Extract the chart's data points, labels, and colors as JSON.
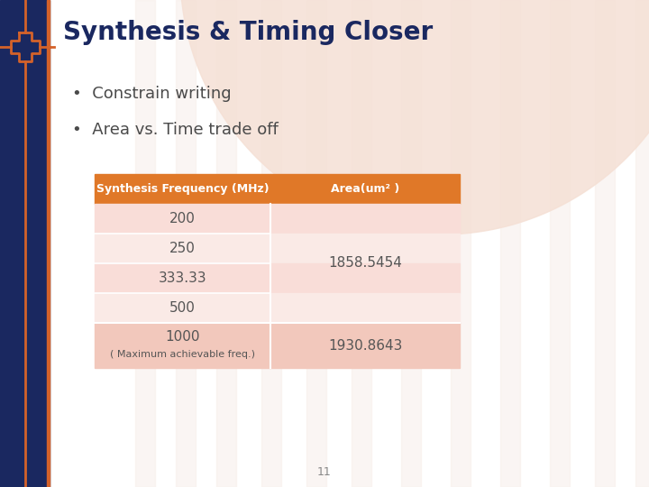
{
  "title": "Synthesis & Timing Closer",
  "bullets": [
    "Constrain writing",
    "Area vs. Time trade off"
  ],
  "table_header1": "Synthesis Frequency (MHz)",
  "table_header2": "Area(um",
  "table_header2_sup": "2",
  "table_header2_end": " )",
  "rows_left": [
    "200",
    "250",
    "333.33",
    "500"
  ],
  "row_last_line1": "1000",
  "row_last_line2": "( Maximum achievable freq.)",
  "area_merged": "1858.5454",
  "area_last": "1930.8643",
  "bg_color": "#ffffff",
  "sidebar_color": "#1a2860",
  "sidebar_accent": "#d4622a",
  "title_color": "#1a2860",
  "bullet_color": "#4a4a4a",
  "table_header_bg": "#e07828",
  "table_header_fg": "#ffffff",
  "table_row_bg_even": "#f9ddd8",
  "table_row_bg_odd": "#faeae6",
  "table_row_bg_last": "#f2c8bc",
  "table_text_color": "#555555",
  "page_number": "11",
  "semicircle_color": "#f5e0d5",
  "stripe_color": "#f7ede8",
  "stripe_bg": "#fdf5f2"
}
